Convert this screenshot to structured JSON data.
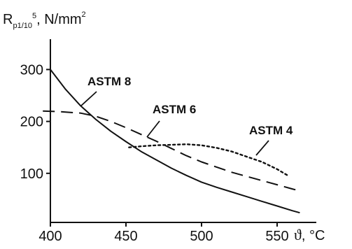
{
  "chart_data": {
    "type": "line",
    "title": "",
    "ylabel": {
      "main": "R",
      "subscript": "p1/10",
      "superscript": "5",
      "unit": ", N/mm",
      "unit_power": "2"
    },
    "xlabel": {
      "symbol": "ϑ",
      "unit": ", °C"
    },
    "xlim": [
      400,
      570
    ],
    "ylim": [
      0,
      340
    ],
    "x_ticks": [
      400,
      450,
      500,
      550
    ],
    "y_ticks": [
      100,
      200,
      300
    ],
    "grid": false,
    "colors": {
      "line": "#111111",
      "axis": "#111111",
      "background": "#ffffff"
    },
    "series": [
      {
        "name": "ASTM 8",
        "style": "solid",
        "x": [
          400,
          410,
          420,
          430,
          440,
          450,
          460,
          470,
          480,
          490,
          500,
          510,
          520,
          530,
          540,
          550,
          560,
          565
        ],
        "y": [
          300,
          262,
          230,
          204,
          181,
          161,
          142,
          126,
          110,
          96,
          83,
          73,
          64,
          55,
          46,
          37,
          28,
          24
        ]
      },
      {
        "name": "ASTM 6",
        "style": "dashed",
        "x": [
          395,
          405,
          420,
          430,
          440,
          450,
          460,
          470,
          480,
          490,
          500,
          510,
          520,
          530,
          540,
          550,
          560,
          565
        ],
        "y": [
          220,
          219,
          216,
          210,
          200,
          188,
          175,
          162,
          148,
          134,
          122,
          112,
          102,
          94,
          86,
          78,
          70,
          66
        ]
      },
      {
        "name": "ASTM 4",
        "style": "dotted",
        "x": [
          452,
          460,
          470,
          480,
          490,
          500,
          510,
          520,
          530,
          540,
          550,
          557
        ],
        "y": [
          150,
          152,
          154,
          155,
          156,
          154,
          149,
          142,
          132,
          122,
          108,
          96
        ]
      }
    ]
  }
}
